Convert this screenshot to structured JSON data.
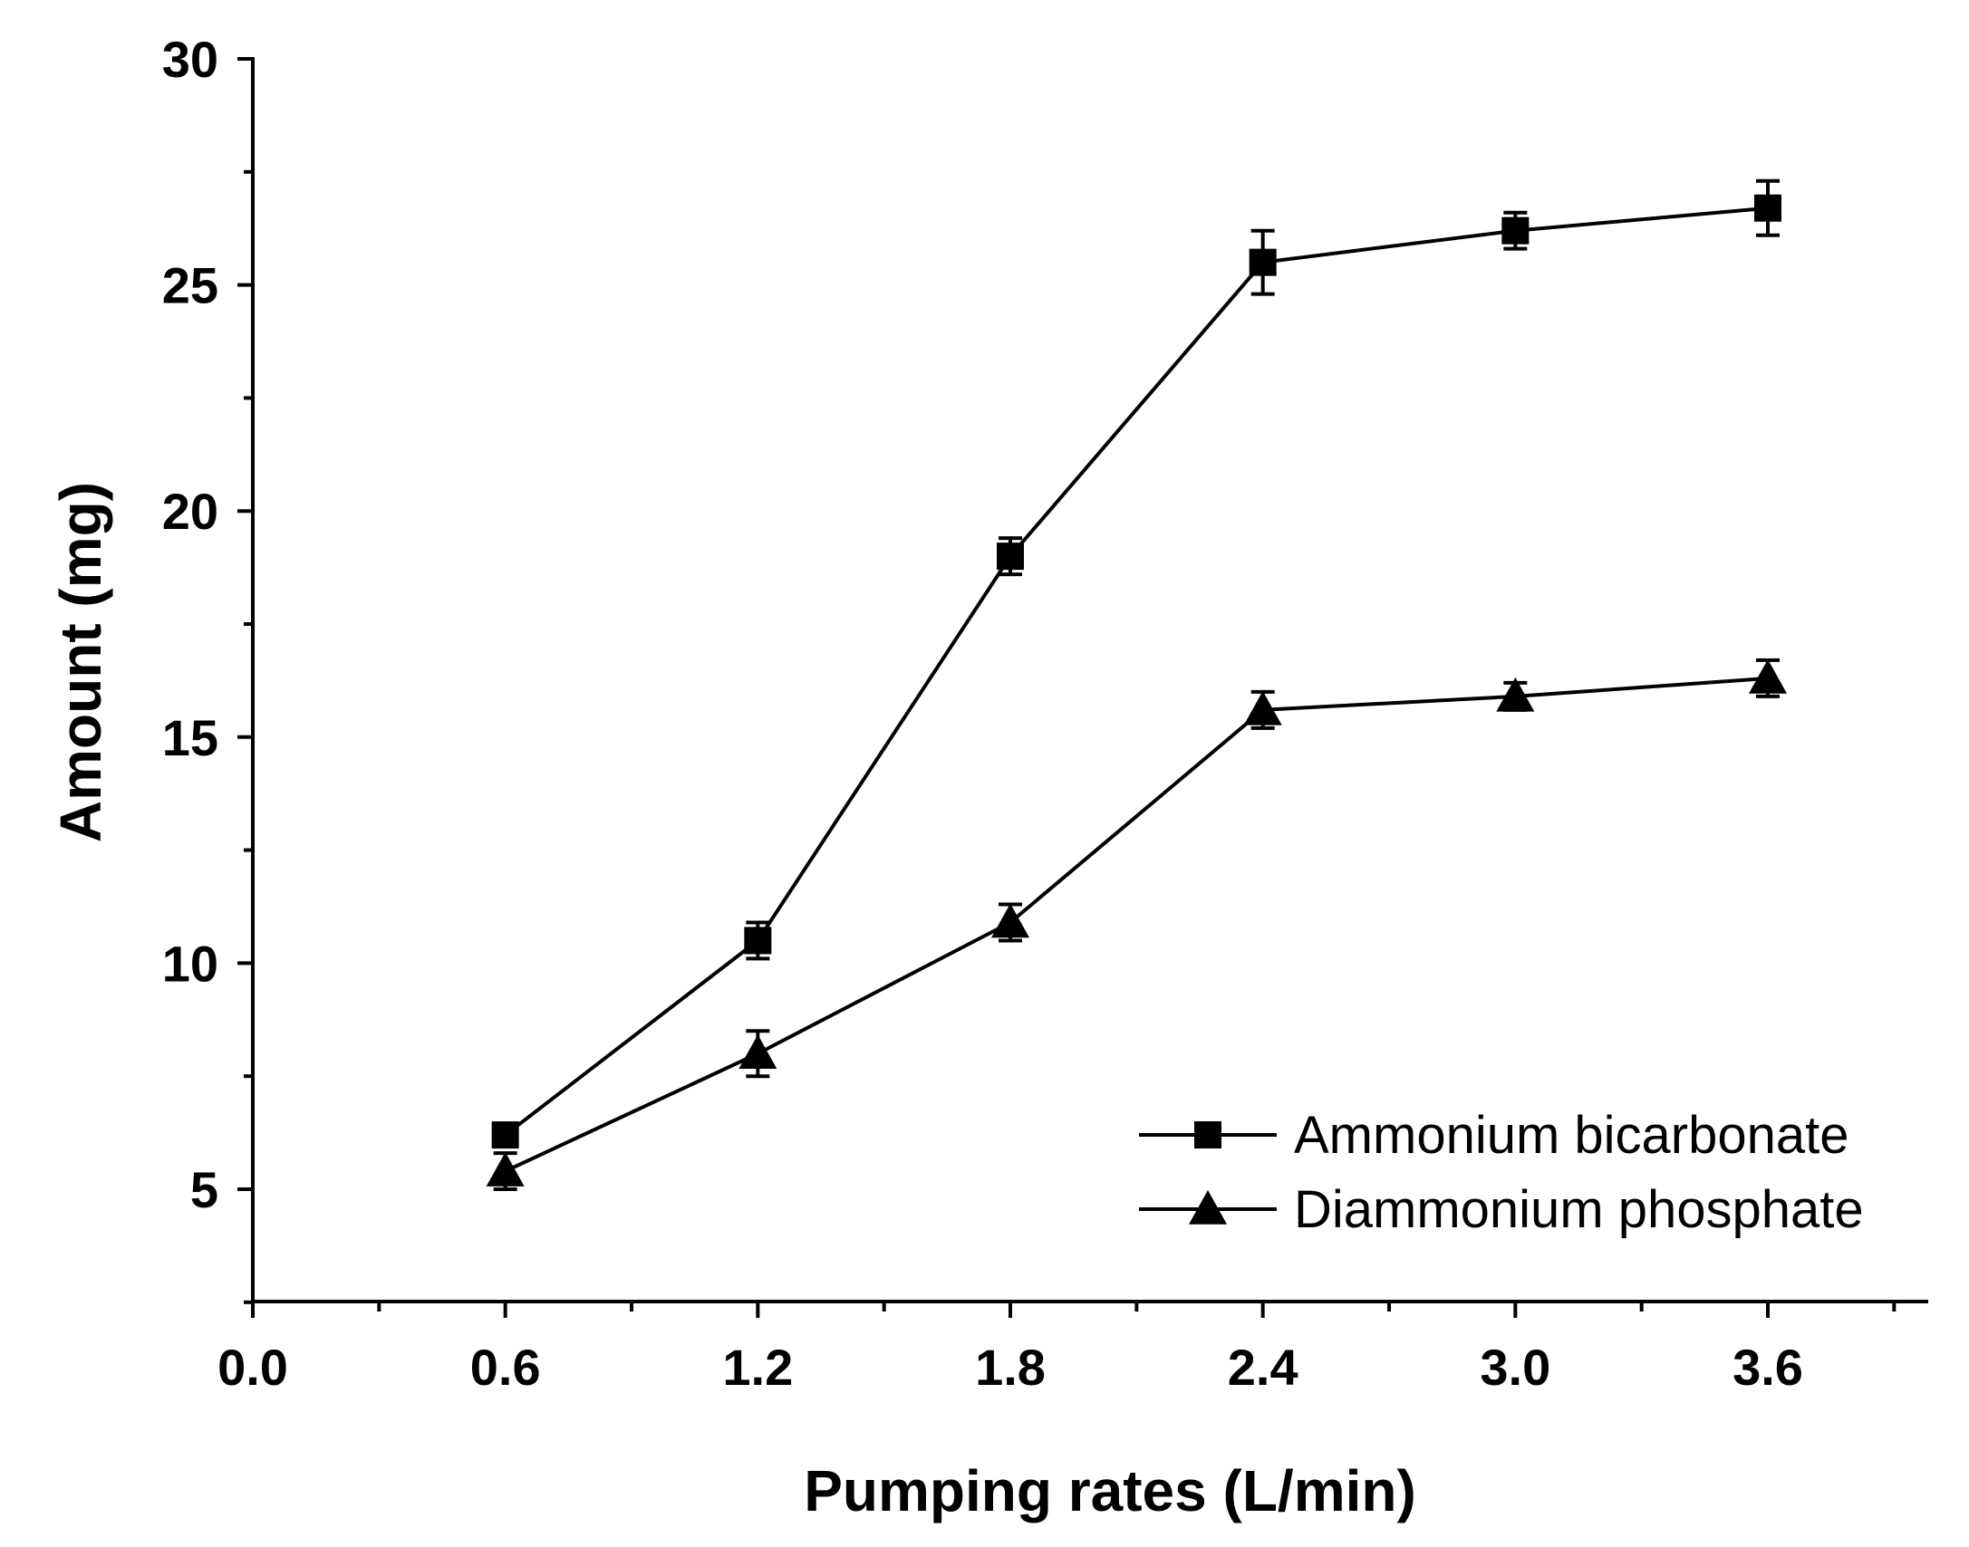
{
  "chart_data": {
    "type": "line",
    "title": "",
    "xlabel": "Pumping rates (L/min)",
    "ylabel": "Amount (mg)",
    "xlim": [
      0.0,
      3.9
    ],
    "ylim": [
      2.5,
      30
    ],
    "x_ticks": [
      "0.0",
      "0.6",
      "1.2",
      "1.8",
      "2.4",
      "3.0",
      "3.6"
    ],
    "x_tick_values": [
      0.0,
      0.6,
      1.2,
      1.8,
      2.4,
      3.0,
      3.6
    ],
    "y_ticks": [
      "5",
      "10",
      "15",
      "20",
      "25",
      "30"
    ],
    "y_tick_values": [
      5,
      10,
      15,
      20,
      25,
      30
    ],
    "grid": false,
    "legend_position": "bottom-right",
    "series": [
      {
        "name": "Ammonium bicarbonate",
        "marker": "square",
        "x": [
          0.6,
          1.2,
          1.8,
          2.4,
          3.0,
          3.6
        ],
        "values": [
          6.2,
          10.5,
          19.0,
          25.5,
          26.2,
          26.7
        ],
        "errors": [
          0.2,
          0.4,
          0.4,
          0.7,
          0.4,
          0.6
        ]
      },
      {
        "name": "Diammonium phosphate",
        "marker": "triangle",
        "x": [
          0.6,
          1.2,
          1.8,
          2.4,
          3.0,
          3.6
        ],
        "values": [
          5.4,
          8.0,
          10.9,
          15.6,
          15.9,
          16.3
        ],
        "errors": [
          0.4,
          0.5,
          0.4,
          0.4,
          0.3,
          0.4
        ]
      }
    ]
  }
}
